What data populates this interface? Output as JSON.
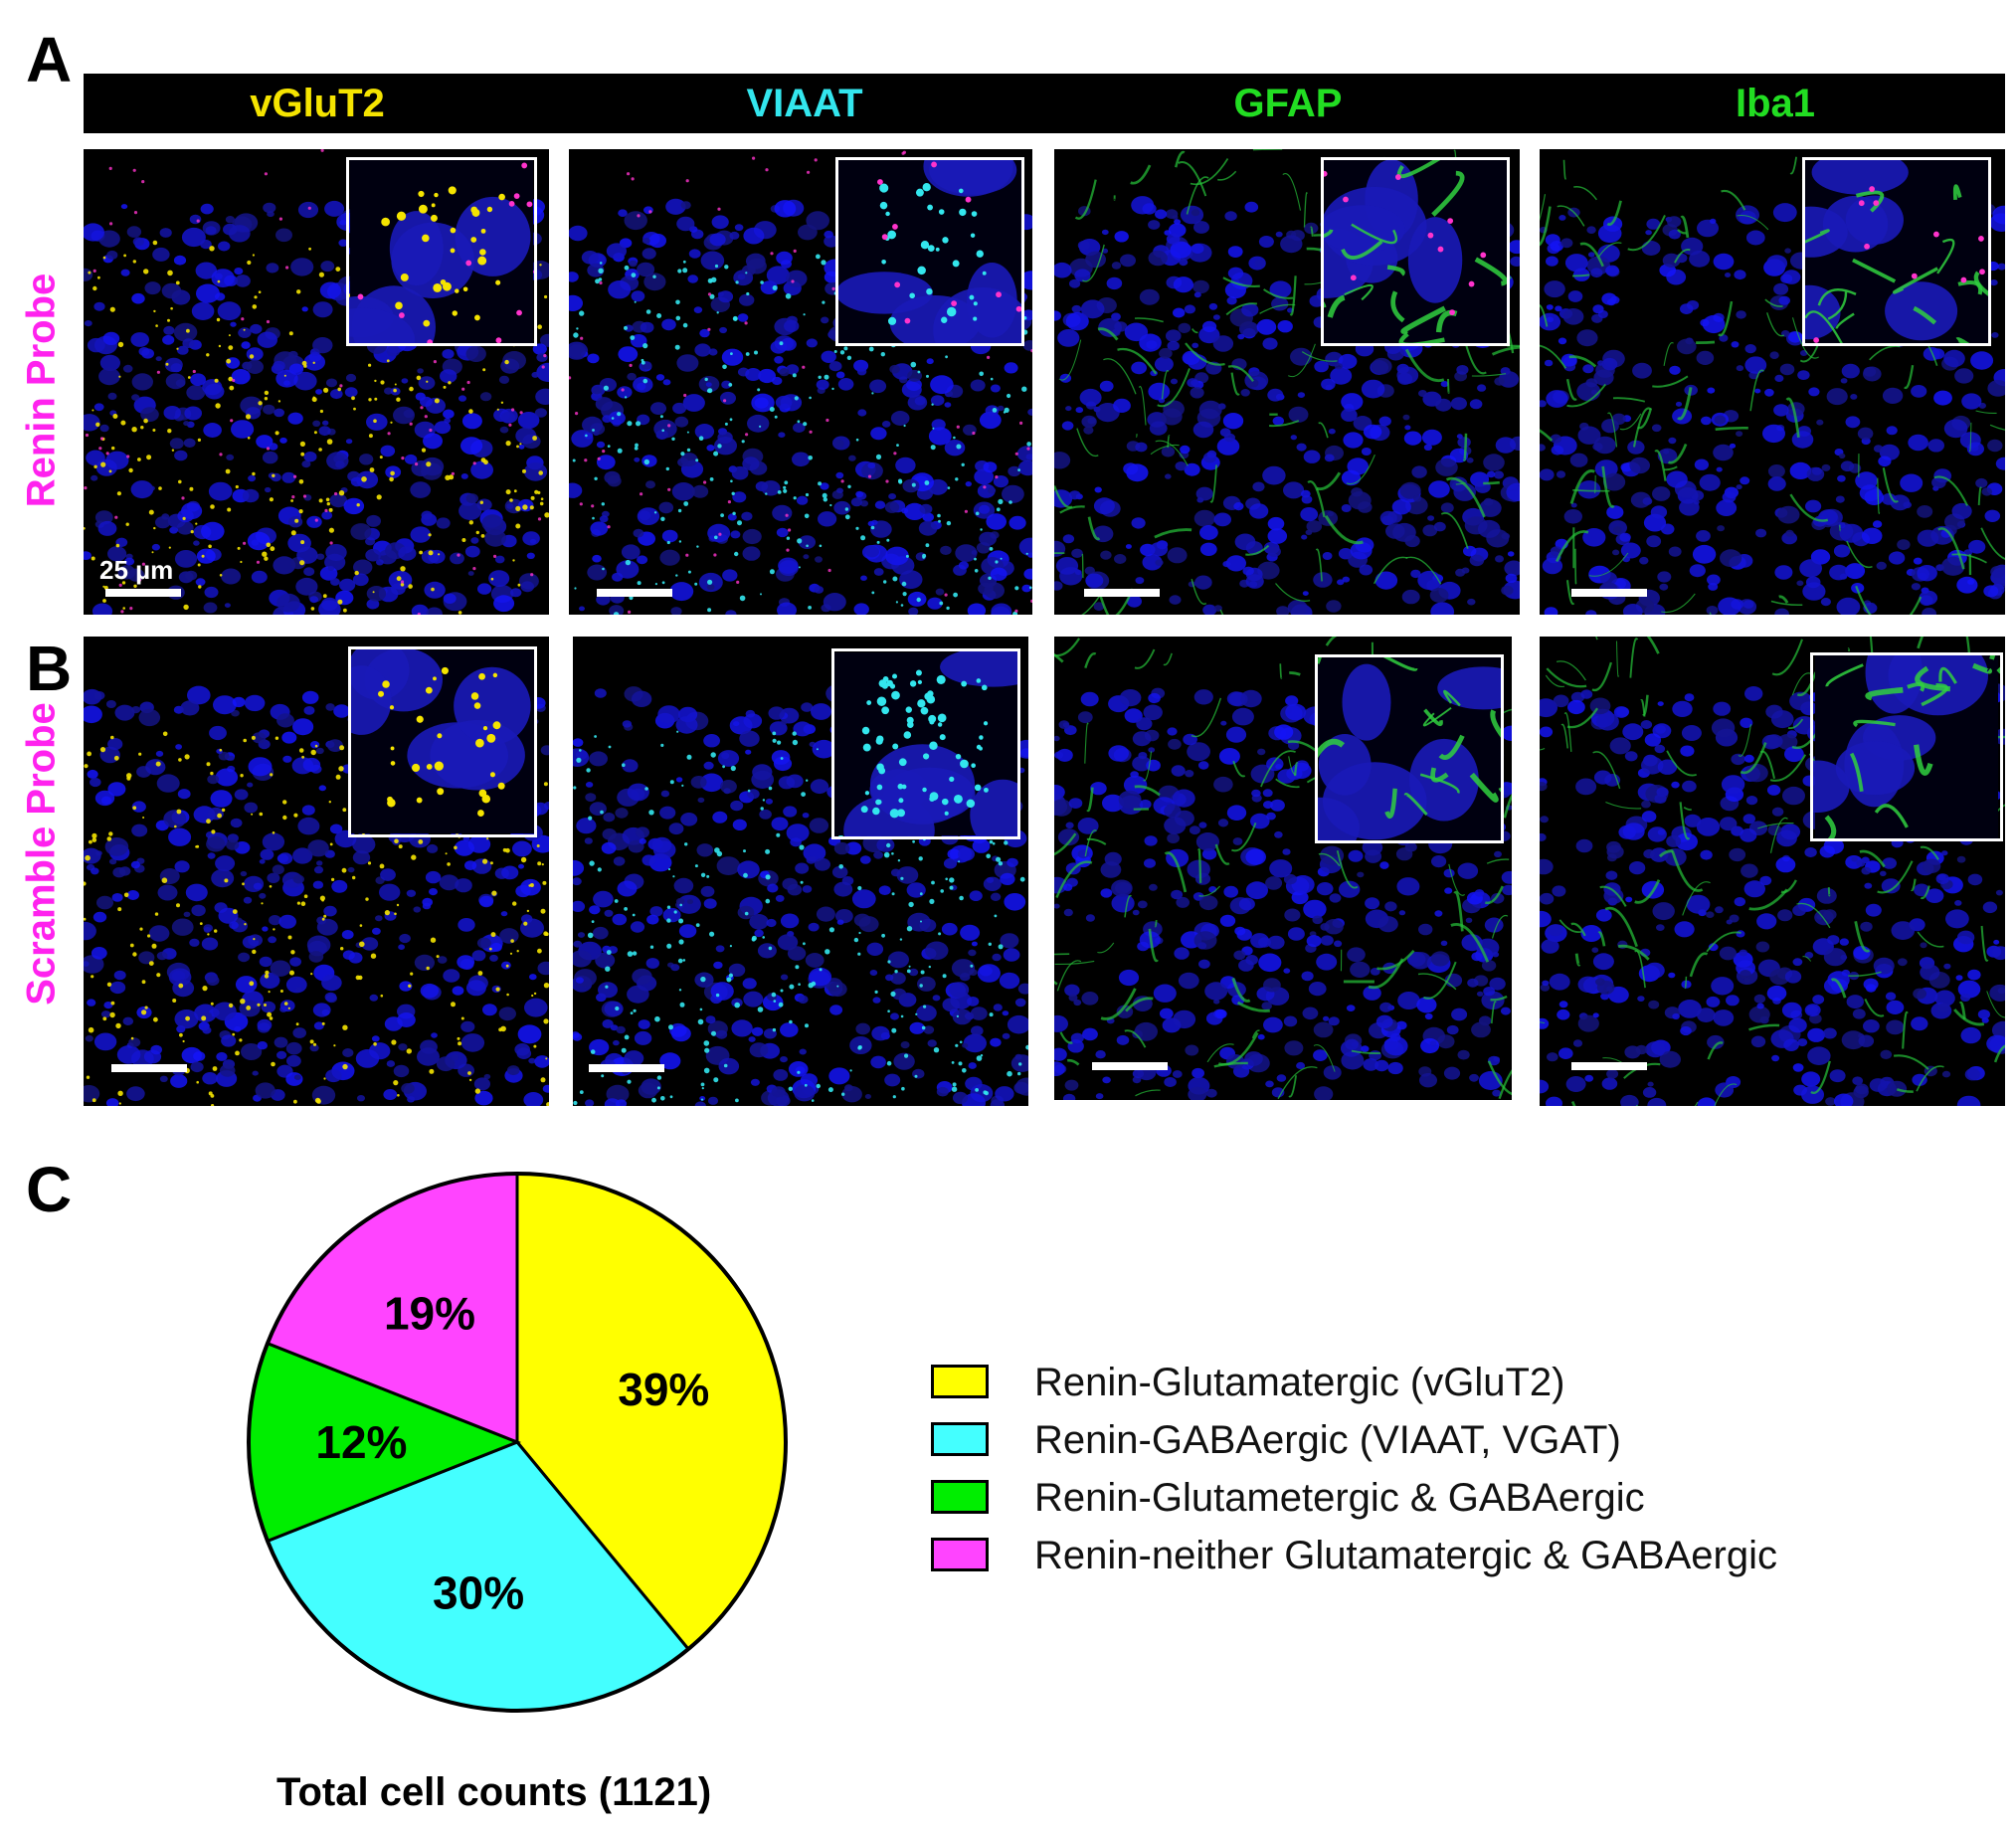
{
  "panels": {
    "a": "A",
    "b": "B",
    "c": "C"
  },
  "columns": [
    {
      "label": "vGluT2",
      "color": "#f5e400"
    },
    {
      "label": "VIAAT",
      "color": "#33e6ee"
    },
    {
      "label": "GFAP",
      "color": "#22dd22"
    },
    {
      "label": "Iba1",
      "color": "#22dd22"
    }
  ],
  "rows": [
    {
      "label": "Renin Probe",
      "color": "#ff22ee"
    },
    {
      "label": "Scramble Probe",
      "color": "#ff22ee"
    }
  ],
  "scale_label": "25  µm",
  "chart_data": {
    "type": "pie",
    "slices": [
      {
        "label": "Renin-Glutamatergic (vGluT2)",
        "value": 39,
        "display": "39%",
        "color": "#ffff00"
      },
      {
        "label": "Renin-GABAergic (VIAAT, VGAT)",
        "value": 30,
        "display": "30%",
        "color": "#44ffff"
      },
      {
        "label": "Renin-Glutametergic & GABAergic",
        "value": 12,
        "display": "12%",
        "color": "#00ee00"
      },
      {
        "label": "Renin-neither Glutamatergic & GABAergic",
        "value": 19,
        "display": "19%",
        "color": "#ff44ff"
      }
    ],
    "title": "Total cell counts (1121)",
    "legend_position": "right"
  }
}
